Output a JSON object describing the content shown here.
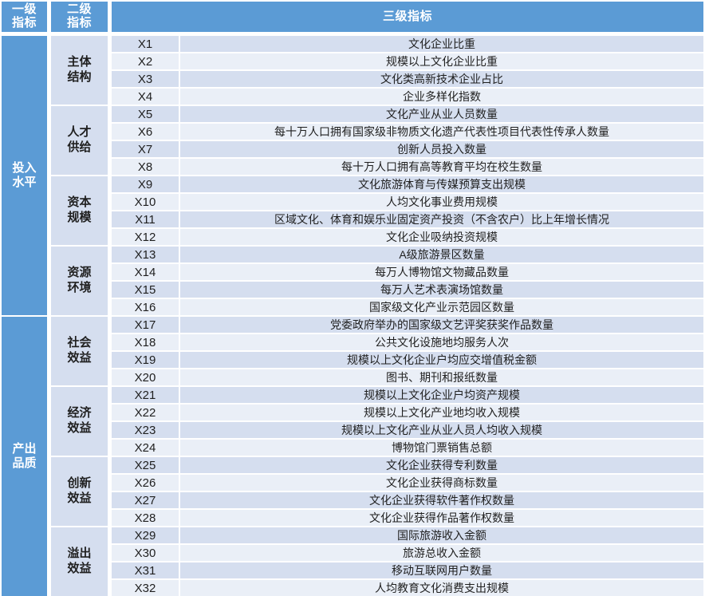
{
  "table": {
    "header": {
      "level1": "一级\n指标",
      "level2": "二级\n指标",
      "level3": "三级指标"
    },
    "level1_groups": [
      {
        "label": "投入\n水平"
      },
      {
        "label": "产出\n品质"
      }
    ],
    "level2_groups": [
      {
        "label": "主体\n结构"
      },
      {
        "label": "人才\n供给"
      },
      {
        "label": "资本\n规模"
      },
      {
        "label": "资源\n环境"
      },
      {
        "label": "社会\n效益"
      },
      {
        "label": "经济\n效益"
      },
      {
        "label": "创新\n效益"
      },
      {
        "label": "溢出\n效益"
      }
    ],
    "rows": [
      {
        "code": "X1",
        "label": "文化企业比重"
      },
      {
        "code": "X2",
        "label": "规模以上文化企业比重"
      },
      {
        "code": "X3",
        "label": "文化类高新技术企业占比"
      },
      {
        "code": "X4",
        "label": "企业多样化指数"
      },
      {
        "code": "X5",
        "label": "文化产业从业人员数量"
      },
      {
        "code": "X6",
        "label": "每十万人口拥有国家级非物质文化遗产代表性项目代表性传承人数量"
      },
      {
        "code": "X7",
        "label": "创新人员投入数量"
      },
      {
        "code": "X8",
        "label": "每十万人口拥有高等教育平均在校生数量"
      },
      {
        "code": "X9",
        "label": "文化旅游体育与传媒预算支出规模"
      },
      {
        "code": "X10",
        "label": "人均文化事业费用规模"
      },
      {
        "code": "X11",
        "label": "区域文化、体育和娱乐业固定资产投资（不含农户）比上年增长情况"
      },
      {
        "code": "X12",
        "label": "文化企业吸纳投资规模"
      },
      {
        "code": "X13",
        "label": "A级旅游景区数量"
      },
      {
        "code": "X14",
        "label": "每万人博物馆文物藏品数量"
      },
      {
        "code": "X15",
        "label": "每万人艺术表演场馆数量"
      },
      {
        "code": "X16",
        "label": "国家级文化产业示范园区数量"
      },
      {
        "code": "X17",
        "label": "党委政府举办的国家级文艺评奖获奖作品数量"
      },
      {
        "code": "X18",
        "label": "公共文化设施地均服务人次"
      },
      {
        "code": "X19",
        "label": "规模以上文化企业户均应交增值税金额"
      },
      {
        "code": "X20",
        "label": "图书、期刊和报纸数量"
      },
      {
        "code": "X21",
        "label": "规模以上文化企业户均资产规模"
      },
      {
        "code": "X22",
        "label": "规模以上文化产业地均收入规模"
      },
      {
        "code": "X23",
        "label": "规模以上文化产业从业人员人均收入规模"
      },
      {
        "code": "X24",
        "label": "博物馆门票销售总额"
      },
      {
        "code": "X25",
        "label": "文化企业获得专利数量"
      },
      {
        "code": "X26",
        "label": "文化企业获得商标数量"
      },
      {
        "code": "X27",
        "label": "文化企业获得软件著作权数量"
      },
      {
        "code": "X28",
        "label": "文化企业获得作品著作权数量"
      },
      {
        "code": "X29",
        "label": "国际旅游收入金额"
      },
      {
        "code": "X30",
        "label": "旅游总收入金额"
      },
      {
        "code": "X31",
        "label": "移动互联网用户数量"
      },
      {
        "code": "X32",
        "label": "人均教育文化消费支出规模"
      }
    ]
  },
  "colors": {
    "accent_blue": "#5b9bd5",
    "band_dark": "#d5deef",
    "band_light": "#eaeff7",
    "header_text": "#ffffff",
    "body_text": "#1f1f1f"
  }
}
